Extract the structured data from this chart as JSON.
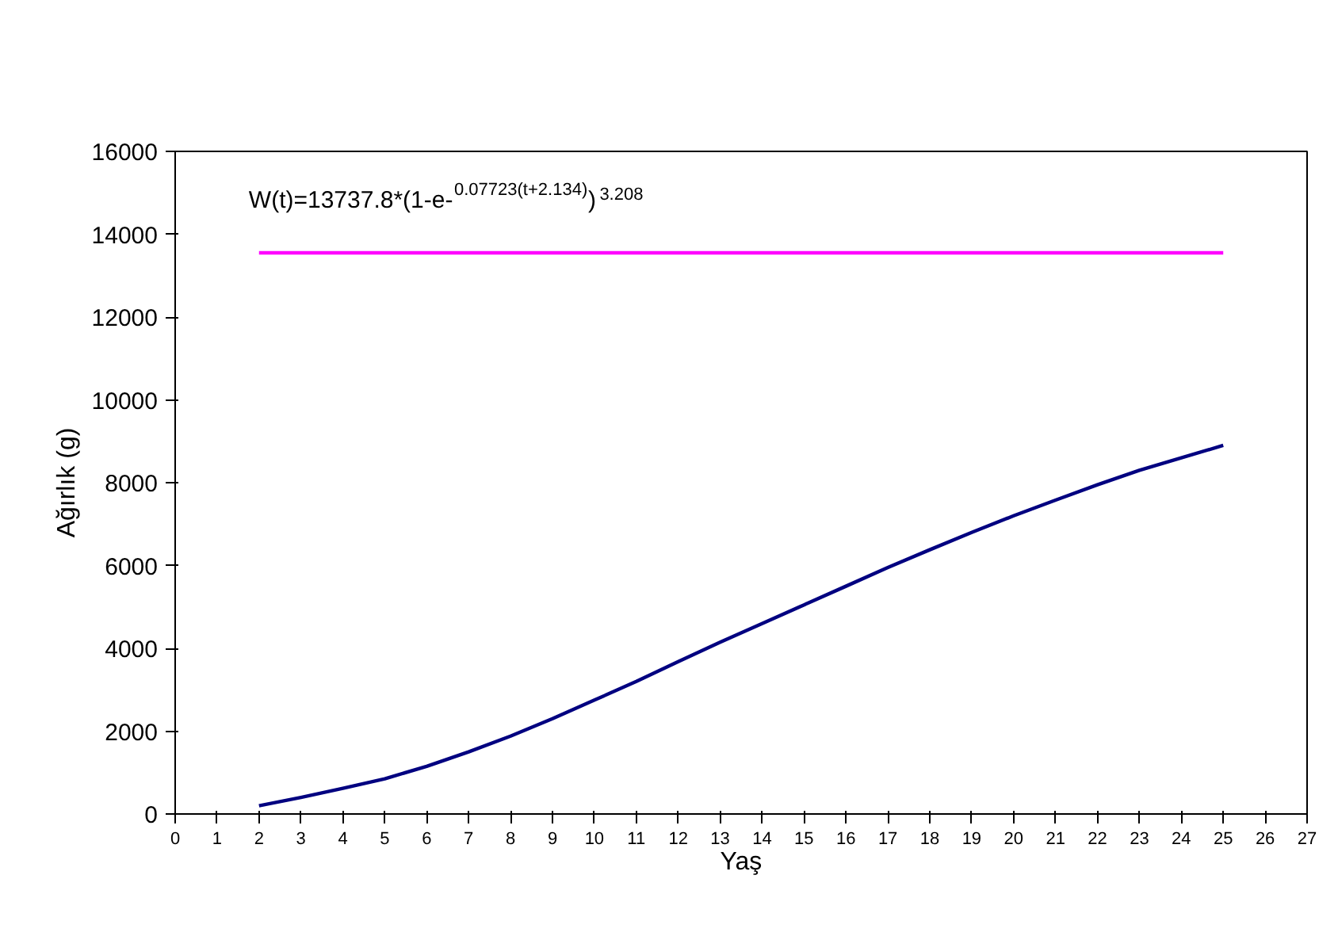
{
  "chart_data": {
    "type": "line",
    "xlabel": "Yaş",
    "ylabel": "Ağırlık (g)",
    "annotations": [
      "W(t)=13737.8*(1-e-$^{0.07723(t+2.134)}$)$^{3.208}$"
    ],
    "series": [
      {
        "color": "#000080",
        "x": [
          2,
          3,
          4,
          5,
          6,
          7,
          8,
          9,
          10,
          11,
          12,
          13,
          14,
          15,
          16,
          17,
          18,
          19,
          20,
          21,
          22,
          23,
          24,
          25
        ],
        "values": [
          200,
          400,
          620,
          850,
          1150,
          1500,
          1880,
          2300,
          2750,
          3200,
          3680,
          4150,
          4600,
          5050,
          5500,
          5950,
          6380,
          6800,
          7200,
          7580,
          7950,
          8300,
          8600,
          8900
        ]
      },
      {
        "color": "#ff00ff",
        "x": [
          2,
          25
        ],
        "values": [
          13550,
          13550
        ]
      }
    ],
    "xlim": [
      0,
      27
    ],
    "xticks": [
      0,
      1,
      2,
      3,
      4,
      5,
      6,
      7,
      8,
      9,
      10,
      11,
      12,
      13,
      14,
      15,
      16,
      17,
      18,
      19,
      20,
      21,
      22,
      23,
      24,
      25,
      26,
      27
    ],
    "ylim": [
      0,
      16000
    ],
    "yticks": [
      0,
      2000,
      4000,
      6000,
      8000,
      10000,
      12000,
      14000,
      16000
    ],
    "grid": false,
    "marker": "none",
    "line_style": "solid"
  }
}
